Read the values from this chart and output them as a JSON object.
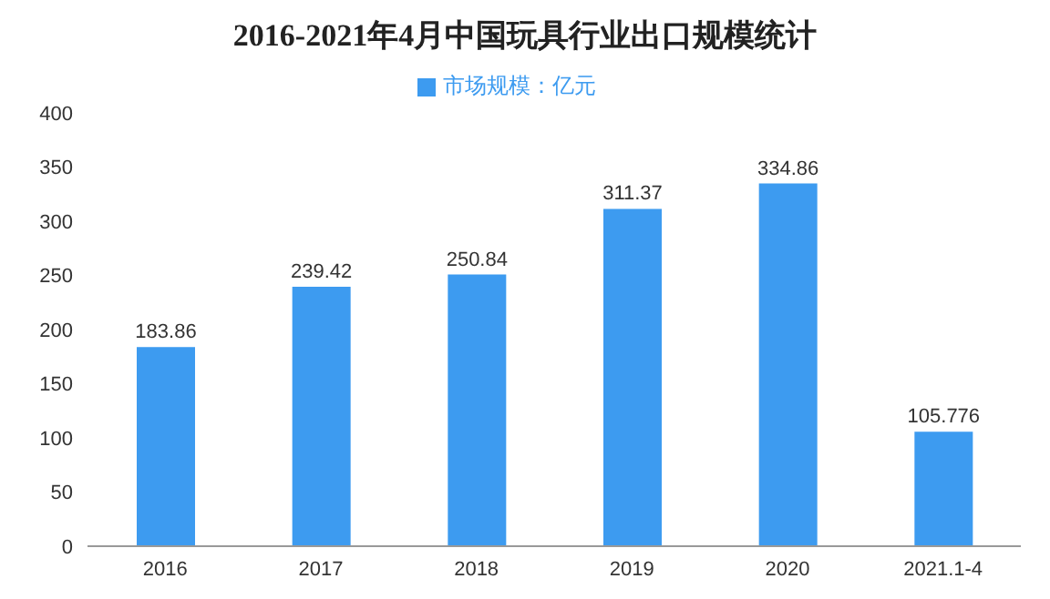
{
  "chart_data": {
    "type": "bar",
    "title": "2016-2021年4月中国玩具行业出口规模统计",
    "categories": [
      "2016",
      "2017",
      "2018",
      "2019",
      "2020",
      "2021.1-4"
    ],
    "series": [
      {
        "name": "市场规模：亿元",
        "color": "#3d9bf0",
        "values": [
          183.86,
          239.42,
          250.84,
          311.37,
          334.86,
          105.776
        ]
      }
    ],
    "ylim": [
      0,
      400
    ],
    "yticks": [
      0,
      50,
      100,
      150,
      200,
      250,
      300,
      350,
      400
    ],
    "grid": false,
    "legend": "top",
    "data_labels": true
  }
}
